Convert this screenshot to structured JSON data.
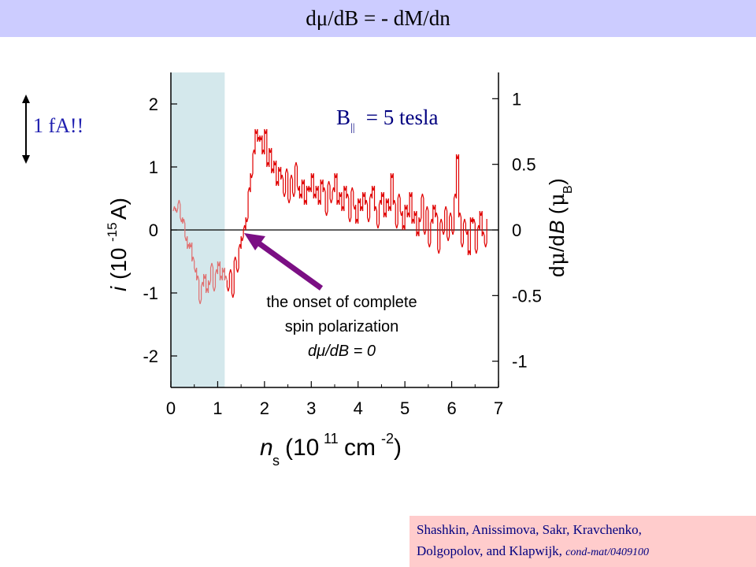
{
  "title": "dμ/dB = - dM/dn",
  "scale_note": "1 fA!!",
  "field_label": {
    "main": "B",
    "sub": "||",
    "rest": " = 5 tesla"
  },
  "annotation": {
    "line1": "the onset of complete",
    "line2": "spin polarization",
    "line3": "dμ/dB = 0",
    "arrow_color": "#7b0f84"
  },
  "citation": {
    "line1": "Shashkin, Anissimova, Sakr, Kravchenko,",
    "line2": "Dolgopolov, and Klapwijk, ",
    "ref": "cond-mat/0409100"
  },
  "chart_data": {
    "type": "line",
    "xlabel": "n_s (10^11 cm^-2)",
    "ylabel_left": "i (10^-15 A)",
    "ylabel_right": "dμ/dB (μ_B)",
    "xlim": [
      0,
      7
    ],
    "ylim_left": [
      -2.5,
      2.5
    ],
    "ylim_right": [
      -1.2,
      1.2
    ],
    "x_ticks": [
      "0",
      "1",
      "2",
      "3",
      "4",
      "5",
      "6",
      "7"
    ],
    "y_ticks_left": [
      "2",
      "1",
      "0",
      "-1",
      "-2"
    ],
    "y_ticks_right": [
      "1",
      "0.5",
      "0",
      "-0.5",
      "-1"
    ],
    "shaded_region": {
      "x_from": 0,
      "x_to": 1.15,
      "color": "#d4e8ec"
    },
    "colors": {
      "curve_shaded": "#e07070",
      "curve": "#e00000"
    },
    "series": [
      {
        "x": [
          0.05,
          0.1,
          0.15,
          0.2,
          0.25,
          0.3,
          0.35,
          0.4,
          0.45,
          0.5,
          0.55,
          0.6,
          0.65,
          0.7,
          0.75,
          0.8,
          0.85,
          0.9,
          0.95,
          1.0,
          1.05,
          1.1,
          1.15,
          1.2,
          1.25,
          1.3,
          1.35,
          1.4,
          1.45,
          1.5,
          1.55,
          1.6,
          1.65,
          1.7,
          1.75,
          1.8,
          1.85,
          1.9,
          1.95,
          2.0,
          2.05,
          2.1,
          2.15,
          2.2,
          2.25,
          2.3,
          2.35,
          2.4,
          2.45,
          2.5,
          2.55,
          2.6,
          2.65,
          2.7,
          2.75,
          2.8,
          2.85,
          2.9,
          2.95,
          3.0,
          3.05,
          3.1,
          3.15,
          3.2,
          3.25,
          3.3,
          3.35,
          3.4,
          3.45,
          3.5,
          3.55,
          3.6,
          3.65,
          3.7,
          3.75,
          3.8,
          3.85,
          3.9,
          3.95,
          4.0,
          4.05,
          4.1,
          4.15,
          4.2,
          4.25,
          4.3,
          4.35,
          4.4,
          4.45,
          4.5,
          4.55,
          4.6,
          4.65,
          4.7,
          4.75,
          4.8,
          4.85,
          4.9,
          4.95,
          5.0,
          5.05,
          5.1,
          5.15,
          5.2,
          5.25,
          5.3,
          5.35,
          5.4,
          5.45,
          5.5,
          5.55,
          5.6,
          5.65,
          5.7,
          5.75,
          5.8,
          5.85,
          5.9,
          5.95,
          6.0,
          6.05,
          6.1,
          6.15,
          6.2,
          6.25,
          6.3,
          6.35,
          6.4,
          6.45,
          6.5,
          6.55,
          6.6,
          6.65,
          6.7,
          6.75
        ],
        "y": [
          0.3,
          0.35,
          0.4,
          0.2,
          0.1,
          -0.1,
          -0.3,
          -0.2,
          -0.5,
          -0.6,
          -0.8,
          -1.1,
          -0.9,
          -0.7,
          -1.0,
          -0.8,
          -0.6,
          -0.9,
          -0.7,
          -0.5,
          -0.8,
          -0.6,
          -0.8,
          -0.9,
          -0.7,
          -1.0,
          -0.5,
          -0.6,
          -0.3,
          -0.1,
          0.0,
          0.2,
          0.6,
          0.9,
          1.2,
          1.6,
          1.4,
          1.5,
          1.2,
          1.6,
          1.0,
          1.3,
          0.9,
          1.1,
          0.7,
          1.0,
          0.8,
          0.6,
          0.9,
          0.5,
          0.8,
          0.6,
          1.0,
          0.7,
          0.5,
          0.8,
          0.4,
          0.7,
          0.6,
          0.9,
          0.5,
          0.7,
          0.4,
          0.8,
          0.6,
          0.3,
          0.7,
          0.5,
          0.6,
          0.9,
          0.4,
          0.6,
          0.3,
          0.7,
          0.5,
          0.2,
          0.6,
          0.4,
          0.1,
          0.5,
          0.3,
          0.6,
          0.4,
          0.2,
          0.5,
          0.7,
          0.3,
          0.1,
          0.4,
          0.6,
          0.2,
          0.5,
          0.3,
          0.9,
          0.4,
          0.1,
          0.5,
          0.3,
          0.0,
          0.4,
          0.2,
          0.6,
          0.1,
          0.3,
          -0.1,
          0.2,
          0.5,
          0.0,
          0.3,
          -0.2,
          0.1,
          0.4,
          0.2,
          -0.3,
          0.1,
          0.0,
          0.3,
          -0.1,
          0.2,
          0.0,
          0.5,
          1.2,
          0.2,
          -0.2,
          0.1,
          0.0,
          -0.4,
          0.2,
          0.1,
          -0.3,
          0.0,
          0.3,
          -0.1,
          -0.2,
          0.1
        ]
      }
    ]
  }
}
